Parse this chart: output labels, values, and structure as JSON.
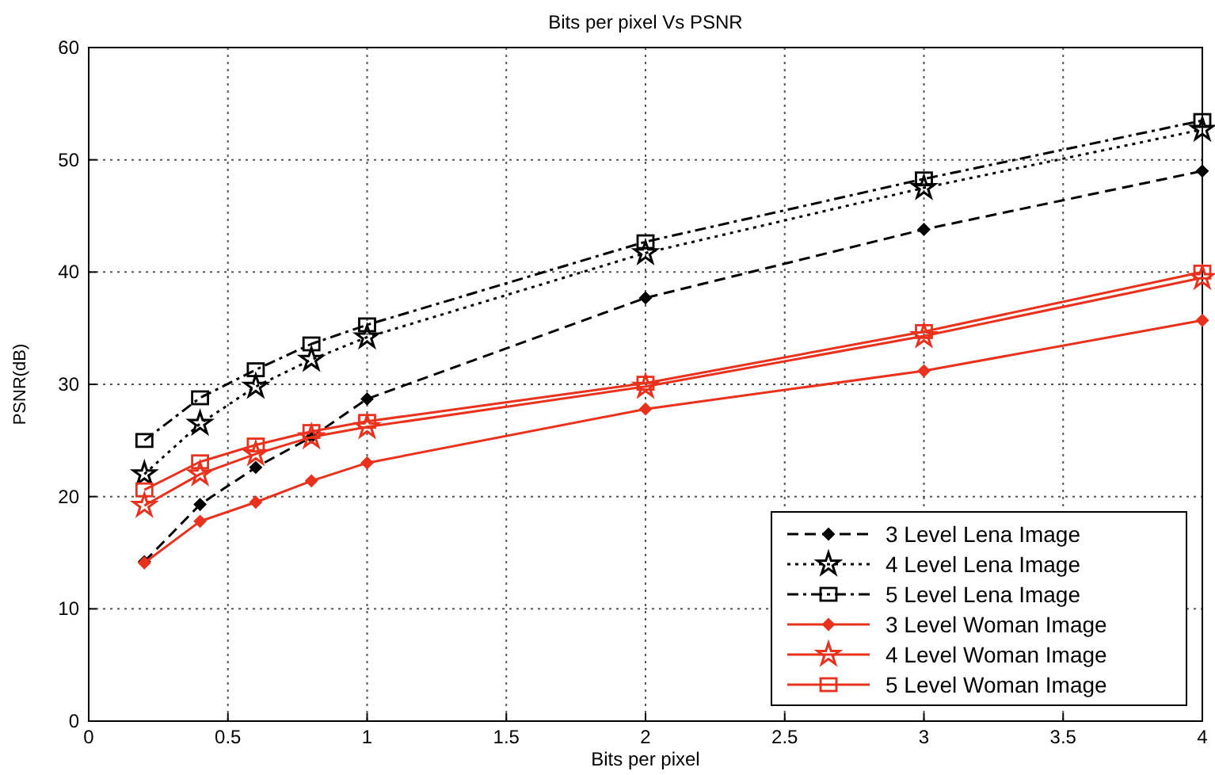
{
  "chart_data": {
    "type": "line",
    "title": "Bits per pixel Vs PSNR",
    "xlabel": "Bits per pixel",
    "ylabel": "PSNR(dB)",
    "x": [
      0.2,
      0.4,
      0.6,
      0.8,
      1,
      2,
      3,
      4
    ],
    "xlim": [
      0,
      4
    ],
    "xticks": [
      0,
      0.5,
      1,
      1.5,
      2,
      2.5,
      3,
      3.5,
      4
    ],
    "ylim": [
      0,
      60
    ],
    "yticks": [
      0,
      10,
      20,
      30,
      40,
      50,
      60
    ],
    "grid": true,
    "legend": "bottom right",
    "series": [
      {
        "name": "3 Level Lena Image",
        "color": "#000000",
        "marker": "diamond",
        "line_style": "dashed",
        "values": [
          14.2,
          19.3,
          22.6,
          25.3,
          28.7,
          37.7,
          43.8,
          49.0
        ]
      },
      {
        "name": "4 Level Lena Image",
        "color": "#000000",
        "marker": "star",
        "line_style": "dotted",
        "values": [
          22.0,
          26.5,
          29.8,
          32.2,
          34.2,
          41.7,
          47.5,
          52.7
        ]
      },
      {
        "name": "5 Level Lena Image",
        "color": "#000000",
        "marker": "square",
        "line_style": "dashdot",
        "values": [
          25.0,
          28.8,
          31.3,
          33.6,
          35.3,
          42.7,
          48.3,
          53.5
        ]
      },
      {
        "name": "3 Level Woman Image",
        "color": "#e8321e",
        "marker": "diamond",
        "line_style": "solid",
        "values": [
          14.1,
          17.8,
          19.5,
          21.4,
          23.0,
          27.8,
          31.2,
          35.7
        ]
      },
      {
        "name": "4 Level Woman Image",
        "color": "#e8321e",
        "marker": "star",
        "line_style": "solid",
        "values": [
          19.2,
          22.0,
          23.8,
          25.3,
          26.2,
          29.8,
          34.3,
          39.5
        ]
      },
      {
        "name": "5 Level Woman Image",
        "color": "#e8321e",
        "marker": "square",
        "line_style": "solid",
        "values": [
          20.6,
          23.1,
          24.6,
          25.8,
          26.7,
          30.1,
          34.7,
          40.0
        ]
      }
    ]
  }
}
